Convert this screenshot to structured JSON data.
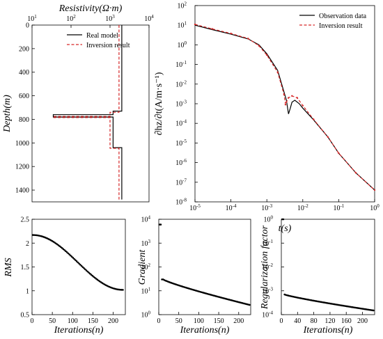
{
  "chart_data": [
    {
      "id": "depth",
      "type": "line",
      "title": "Resistivity(Ω·m)",
      "xlabel": "Resistivity(Ω·m)",
      "ylabel": "Depth(m)",
      "xscale": "log",
      "xlim": [
        10,
        10000
      ],
      "ylim": [
        0,
        1500
      ],
      "y_inverted": true,
      "x_ticks": [
        10,
        100,
        1000,
        10000
      ],
      "x_tick_labels": [
        "10",
        "10",
        "10",
        "10"
      ],
      "x_tick_sups": [
        "1",
        "2",
        "3",
        "4"
      ],
      "y_ticks": [
        0,
        200,
        400,
        600,
        800,
        1000,
        1200,
        1400
      ],
      "legend_position": "top-right",
      "series": [
        {
          "name": "Real model",
          "color": "#000000",
          "dash": "solid",
          "points": [
            [
              2000,
              0
            ],
            [
              2000,
              730
            ],
            [
              1200,
              730
            ],
            [
              1200,
              760
            ],
            [
              35,
              760
            ],
            [
              35,
              780
            ],
            [
              1200,
              780
            ],
            [
              1200,
              1040
            ],
            [
              2000,
              1040
            ],
            [
              2000,
              1480
            ]
          ]
        },
        {
          "name": "Inversion result",
          "color": "#d62728",
          "dash": "dashed",
          "points": [
            [
              1700,
              0
            ],
            [
              1700,
              740
            ],
            [
              1000,
              740
            ],
            [
              1000,
              775
            ],
            [
              35,
              775
            ],
            [
              35,
              785
            ],
            [
              1000,
              785
            ],
            [
              1000,
              1045
            ],
            [
              1700,
              1045
            ],
            [
              1700,
              1480
            ]
          ]
        }
      ]
    },
    {
      "id": "decay",
      "type": "line",
      "xlabel": "t(s)",
      "ylabel": "∂hz/∂t(A/m·s⁻¹)",
      "xscale": "log",
      "yscale": "log",
      "xlim": [
        1e-05,
        1
      ],
      "ylim": [
        1e-08,
        100
      ],
      "x_ticks": [
        1e-05,
        0.0001,
        0.001,
        0.01,
        0.1,
        1
      ],
      "x_tick_labels": [
        "10",
        "10",
        "10",
        "10",
        "10",
        "10"
      ],
      "x_tick_sups": [
        "-5",
        "-4",
        "-3",
        "-2",
        "-1",
        "0"
      ],
      "y_ticks": [
        100,
        10,
        1,
        0.1,
        0.01,
        0.001,
        0.0001,
        1e-05,
        1e-06,
        1e-07,
        1e-08
      ],
      "y_tick_labels": [
        "10",
        "10",
        "10",
        "10",
        "10",
        "10",
        "10",
        "10",
        "10",
        "10",
        "10"
      ],
      "y_tick_sups": [
        "2",
        "1",
        "0",
        "-1",
        "-2",
        "-3",
        "-4",
        "-5",
        "-6",
        "-7",
        "-8"
      ],
      "legend_position": "top-right",
      "series": [
        {
          "name": "Observation data",
          "color": "#000000",
          "dash": "solid",
          "points": [
            [
              1e-05,
              10
            ],
            [
              3e-05,
              6
            ],
            [
              0.0001,
              3.5
            ],
            [
              0.0003,
              2
            ],
            [
              0.0006,
              1
            ],
            [
              0.001,
              0.35
            ],
            [
              0.002,
              0.05
            ],
            [
              0.003,
              0.004
            ],
            [
              0.0035,
              0.0015
            ],
            [
              0.004,
              0.0003
            ],
            [
              0.0045,
              0.0006
            ],
            [
              0.005,
              0.0012
            ],
            [
              0.006,
              0.0015
            ],
            [
              0.008,
              0.001
            ],
            [
              0.01,
              0.0006
            ],
            [
              0.02,
              0.00015
            ],
            [
              0.05,
              2e-05
            ],
            [
              0.1,
              3e-06
            ],
            [
              0.3,
              3e-07
            ],
            [
              1,
              4e-08
            ]
          ]
        },
        {
          "name": "Inversion result",
          "color": "#d62728",
          "dash": "dashed",
          "points": [
            [
              1e-05,
              11
            ],
            [
              3e-05,
              6.5
            ],
            [
              0.0001,
              3.8
            ],
            [
              0.0003,
              2.1
            ],
            [
              0.0006,
              0.9
            ],
            [
              0.001,
              0.3
            ],
            [
              0.002,
              0.04
            ],
            [
              0.003,
              0.003
            ],
            [
              0.0033,
              0.0009
            ],
            [
              0.0035,
              0.0012
            ],
            [
              0.004,
              0.002
            ],
            [
              0.005,
              0.0025
            ],
            [
              0.007,
              0.002
            ],
            [
              0.01,
              0.0008
            ],
            [
              0.02,
              0.00016
            ],
            [
              0.05,
              2e-05
            ],
            [
              0.1,
              3e-06
            ],
            [
              0.3,
              3e-07
            ],
            [
              1,
              4e-08
            ]
          ]
        }
      ]
    },
    {
      "id": "rms",
      "type": "scatter",
      "xlabel": "Iterations(n)",
      "ylabel": "RMS",
      "xlim": [
        0,
        230
      ],
      "ylim": [
        0.5,
        2.5
      ],
      "x_ticks": [
        0,
        50,
        100,
        150,
        200
      ],
      "y_ticks": [
        0.5,
        1,
        1.5,
        2,
        2.5
      ],
      "y_tick_labels": [
        "0.5",
        "1",
        "1.5",
        "2",
        "2.5"
      ],
      "n_points": 75,
      "x_step": 3,
      "y_start": 2.17,
      "y_end": 1.02
    },
    {
      "id": "gradient",
      "type": "scatter",
      "xlabel": "Iterations(n)",
      "ylabel": "Gradient",
      "yscale": "log",
      "xlim": [
        0,
        230
      ],
      "ylim": [
        1,
        10000
      ],
      "x_ticks": [
        0,
        50,
        100,
        150,
        200
      ],
      "y_ticks": [
        1,
        10,
        100,
        1000,
        10000
      ],
      "y_tick_labels": [
        "10",
        "10",
        "10",
        "10",
        "10"
      ],
      "y_tick_sups": [
        "0",
        "1",
        "2",
        "3",
        "4"
      ],
      "initial_points": [
        [
          2,
          6000
        ],
        [
          5,
          6000
        ],
        [
          8,
          30
        ]
      ],
      "y_start": 30,
      "y_end": 2.5,
      "n_points": 74,
      "x_step": 3
    },
    {
      "id": "regularization",
      "type": "scatter",
      "xlabel": "Iterations(n)",
      "ylabel": "Regularization factor",
      "yscale": "log",
      "xlim": [
        0,
        230
      ],
      "ylim": [
        0.0001,
        1
      ],
      "x_ticks": [
        0,
        40,
        80,
        120,
        160,
        200
      ],
      "y_ticks": [
        1,
        0.1,
        0.01,
        0.001,
        0.0001
      ],
      "y_tick_labels": [
        "10",
        "10",
        "10",
        "10",
        "10"
      ],
      "y_tick_sups": [
        "0",
        "-1",
        "-2",
        "-3",
        "-4"
      ],
      "initial_points": [
        [
          2,
          1
        ],
        [
          5,
          1
        ]
      ],
      "y_start": 0.0007,
      "y_end": 0.00015,
      "n_points": 74,
      "x_step": 3
    }
  ]
}
